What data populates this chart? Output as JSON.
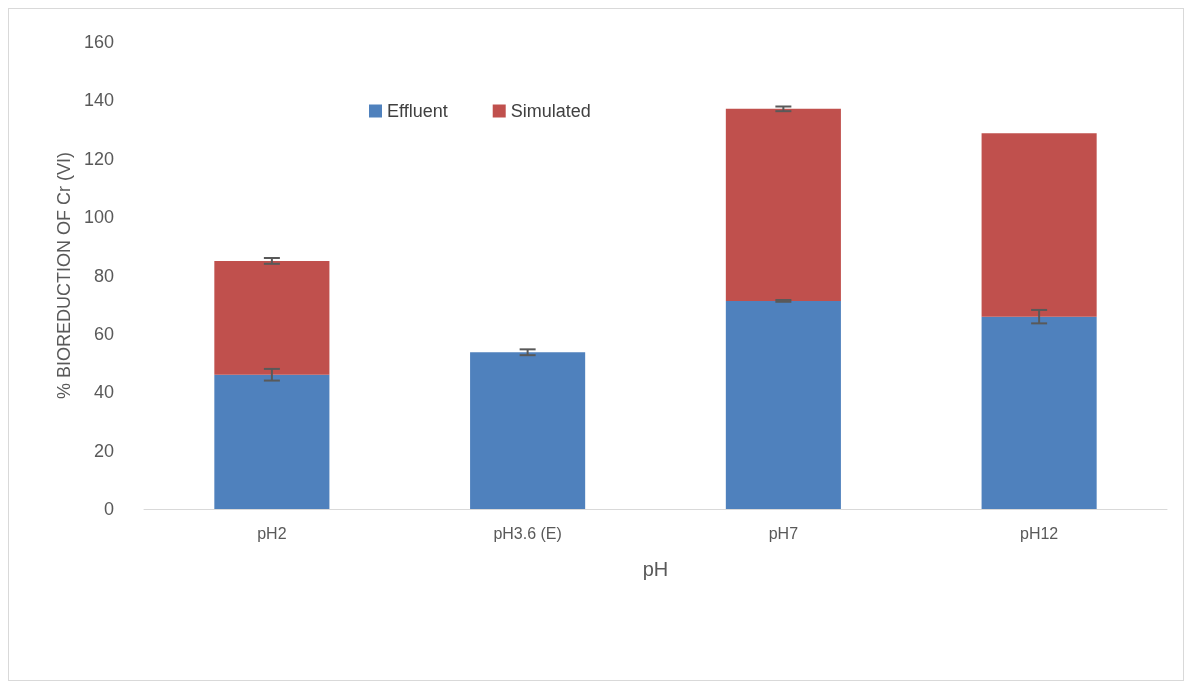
{
  "chart_data": {
    "type": "bar",
    "stacked": true,
    "xlabel": "pH",
    "ylabel": "% BIOREDUCTION OF Cr (VI)",
    "categories": [
      "pH2",
      "pH3.6 (E)",
      "pH7",
      "pH12"
    ],
    "series": [
      {
        "name": "Effluent",
        "color": "#4f81bd",
        "values": [
          46,
          53.7,
          71.3,
          65.9
        ],
        "errors": [
          2,
          1,
          0.3,
          2.3
        ]
      },
      {
        "name": "Simulated",
        "color": "#c0504d",
        "values": [
          39,
          null,
          65.8,
          62.8
        ],
        "errors": [
          1,
          null,
          0.8,
          null
        ]
      }
    ],
    "ylim": [
      0,
      160
    ],
    "yticks": [
      0,
      20,
      40,
      60,
      80,
      100,
      120,
      140,
      160
    ],
    "grid": false,
    "legend": "top"
  }
}
